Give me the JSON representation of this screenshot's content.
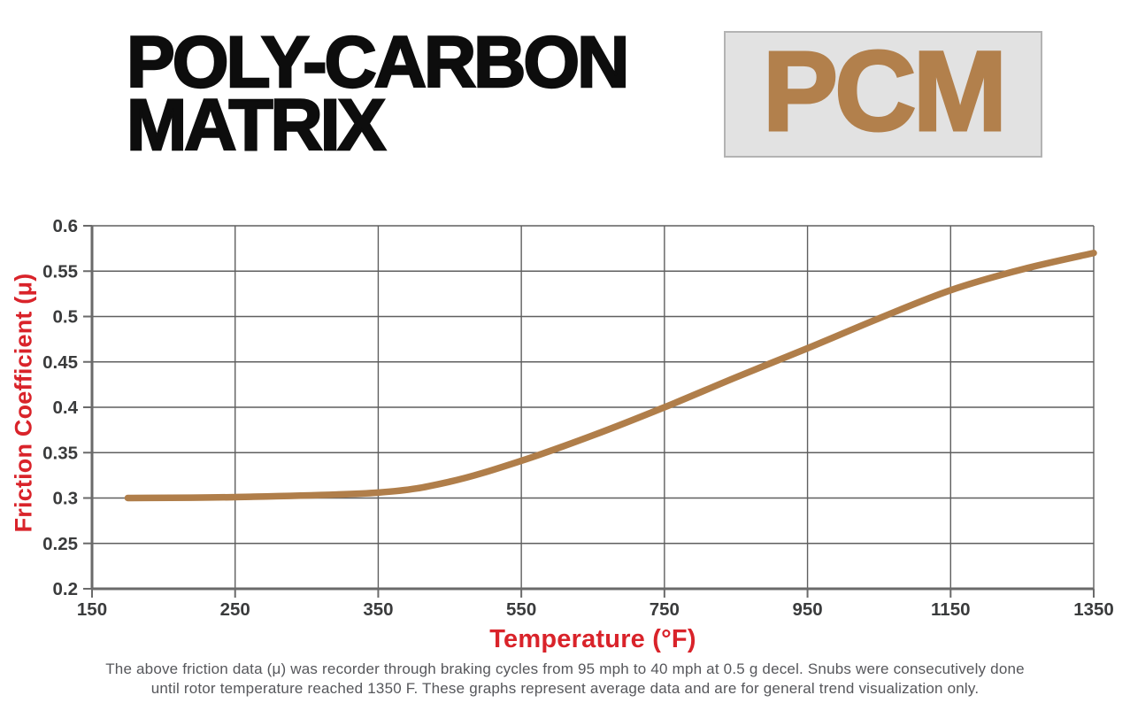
{
  "header": {
    "title_line1": "POLY-CARBON",
    "title_line2": "MATRIX",
    "logo_text": "PCM"
  },
  "colors": {
    "accent_red": "#d9232a",
    "brand_brown": "#b2804c",
    "curve_brown": "#b07e4a",
    "grid_gray": "#5f5f5f",
    "axis_gray": "#6a6a6a",
    "tick_label_dark": "#3a3b3c",
    "footer_gray": "#56575b",
    "logo_bg": "#e2e2e2",
    "logo_border": "#b3b3b3"
  },
  "chart_data": {
    "type": "line",
    "title": "",
    "xlabel": "Temperature (°F)",
    "ylabel": "Friction Coefficient (μ)",
    "x_ticks": [
      150,
      250,
      350,
      550,
      750,
      950,
      1150,
      1350
    ],
    "y_ticks": [
      0.2,
      0.25,
      0.3,
      0.35,
      0.4,
      0.45,
      0.5,
      0.55,
      0.6
    ],
    "ylim": [
      0.2,
      0.6
    ],
    "grid": true,
    "legend": "none",
    "x_axis_note": "tick labels are evenly spaced even though temperature steps change from 100 to 200 °F after 350",
    "series": [
      {
        "name": "PCM friction coefficient",
        "points": [
          {
            "temp_f": 175,
            "mu": 0.3
          },
          {
            "temp_f": 250,
            "mu": 0.301
          },
          {
            "temp_f": 350,
            "mu": 0.306
          },
          {
            "temp_f": 450,
            "mu": 0.318
          },
          {
            "temp_f": 550,
            "mu": 0.341
          },
          {
            "temp_f": 650,
            "mu": 0.369
          },
          {
            "temp_f": 750,
            "mu": 0.4
          },
          {
            "temp_f": 850,
            "mu": 0.433
          },
          {
            "temp_f": 950,
            "mu": 0.465
          },
          {
            "temp_f": 1050,
            "mu": 0.498
          },
          {
            "temp_f": 1150,
            "mu": 0.529
          },
          {
            "temp_f": 1250,
            "mu": 0.552
          },
          {
            "temp_f": 1350,
            "mu": 0.57
          }
        ]
      }
    ]
  },
  "footer": {
    "line1": "The above friction data (μ) was recorder through braking cycles from 95 mph to 40 mph at 0.5 g decel. Snubs were consecutively done",
    "line2": "until rotor temperature reached 1350 F. These graphs represent average data and are for general trend visualization only."
  }
}
